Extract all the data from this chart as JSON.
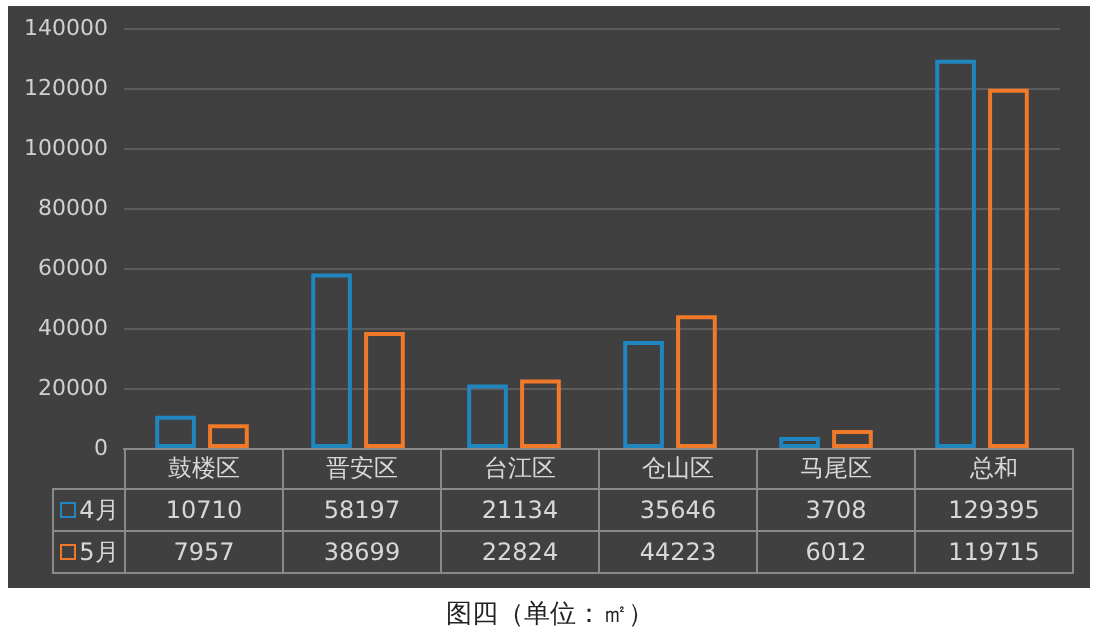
{
  "chart_data": {
    "type": "bar",
    "categories": [
      "鼓楼区",
      "晋安区",
      "台江区",
      "仓山区",
      "马尾区",
      "总和"
    ],
    "series": [
      {
        "name": "4月",
        "color": "#1f86c0",
        "values": [
          10710,
          58197,
          21134,
          35646,
          3708,
          129395
        ]
      },
      {
        "name": "5月",
        "color": "#f07a2a",
        "values": [
          7957,
          38699,
          22824,
          44223,
          6012,
          119715
        ]
      }
    ],
    "ylim": [
      0,
      140000
    ],
    "yticks": [
      0,
      20000,
      40000,
      60000,
      80000,
      100000,
      120000,
      140000
    ],
    "grid": "y",
    "legend": "bottom",
    "data_labels": true,
    "annotations": [
      "图四（单位：㎡）"
    ]
  }
}
